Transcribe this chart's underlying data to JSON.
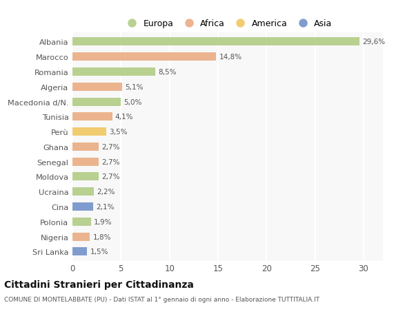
{
  "countries": [
    "Albania",
    "Marocco",
    "Romania",
    "Algeria",
    "Macedonia d/N.",
    "Tunisia",
    "Perù",
    "Ghana",
    "Senegal",
    "Moldova",
    "Ucraina",
    "Cina",
    "Polonia",
    "Nigeria",
    "Sri Lanka"
  ],
  "values": [
    29.6,
    14.8,
    8.5,
    5.1,
    5.0,
    4.1,
    3.5,
    2.7,
    2.7,
    2.7,
    2.2,
    2.1,
    1.9,
    1.8,
    1.5
  ],
  "labels": [
    "29,6%",
    "14,8%",
    "8,5%",
    "5,1%",
    "5,0%",
    "4,1%",
    "3,5%",
    "2,7%",
    "2,7%",
    "2,7%",
    "2,2%",
    "2,1%",
    "1,9%",
    "1,8%",
    "1,5%"
  ],
  "colors": [
    "#adc97e",
    "#e9a87c",
    "#adc97e",
    "#e9a87c",
    "#adc97e",
    "#e9a87c",
    "#f0c457",
    "#e9a87c",
    "#e9a87c",
    "#adc97e",
    "#adc97e",
    "#6b8cc7",
    "#adc97e",
    "#e9a87c",
    "#6b8cc7"
  ],
  "legend_labels": [
    "Europa",
    "Africa",
    "America",
    "Asia"
  ],
  "legend_colors": [
    "#adc97e",
    "#e9a87c",
    "#f0c457",
    "#6b8cc7"
  ],
  "title": "Cittadini Stranieri per Cittadinanza",
  "subtitle": "COMUNE DI MONTELABBATE (PU) - Dati ISTAT al 1° gennaio di ogni anno - Elaborazione TUTTITALIA.IT",
  "xlim": [
    0,
    32
  ],
  "xticks": [
    0,
    5,
    10,
    15,
    20,
    25,
    30
  ],
  "bg_color": "#ffffff",
  "plot_bg_color": "#f8f8f8",
  "grid_color": "#ffffff"
}
